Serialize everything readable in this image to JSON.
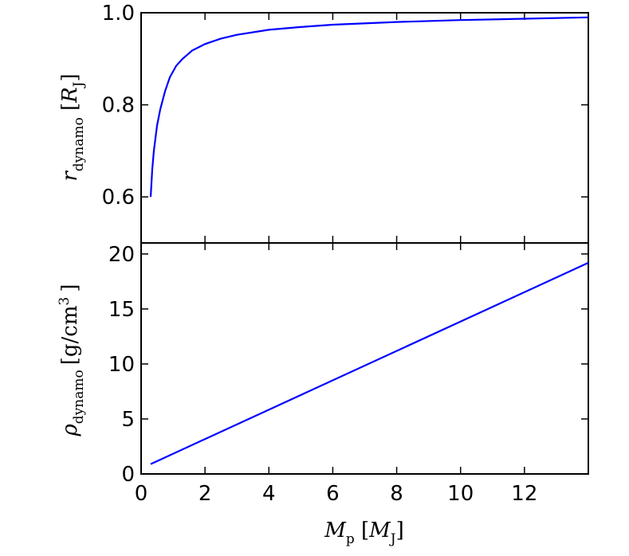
{
  "chart_data": [
    {
      "type": "line",
      "panel": "top",
      "ylabel": {
        "main": "r",
        "sub": "dynamo",
        "unit_main": "R",
        "unit_sub": "J"
      },
      "xlim": [
        0,
        14
      ],
      "ylim": [
        0.5,
        1.0
      ],
      "yticks": [
        0.6,
        0.8,
        1.0
      ],
      "ytick_labels": [
        "0.6",
        "0.8",
        "1.0"
      ],
      "series": [
        {
          "color": "#0000ff",
          "x": [
            0.3,
            0.35,
            0.4,
            0.5,
            0.6,
            0.75,
            0.9,
            1.1,
            1.3,
            1.6,
            2.0,
            2.5,
            3.0,
            4.0,
            5.0,
            6.0,
            8.0,
            10.0,
            12.0,
            14.0
          ],
          "y": [
            0.6,
            0.66,
            0.7,
            0.755,
            0.79,
            0.83,
            0.86,
            0.885,
            0.9,
            0.918,
            0.932,
            0.944,
            0.952,
            0.963,
            0.969,
            0.974,
            0.98,
            0.984,
            0.987,
            0.99
          ]
        }
      ]
    },
    {
      "type": "line",
      "panel": "bottom",
      "ylabel": {
        "main": "ρ",
        "sub": "dynamo",
        "unit": "[g/cm",
        "unit_sup": "3",
        "unit_close": "]"
      },
      "xlabel": {
        "main": "M",
        "sub": "p",
        "unit_main": "M",
        "unit_sub": "J"
      },
      "xlim": [
        0,
        14
      ],
      "ylim": [
        0,
        21
      ],
      "xticks": [
        0,
        2,
        4,
        6,
        8,
        10,
        12
      ],
      "xtick_labels": [
        "0",
        "2",
        "4",
        "6",
        "8",
        "10",
        "12"
      ],
      "yticks": [
        0,
        5,
        10,
        15,
        20
      ],
      "ytick_labels": [
        "0",
        "5",
        "10",
        "15",
        "20"
      ],
      "series": [
        {
          "color": "#0000ff",
          "x": [
            0.3,
            14.0
          ],
          "y": [
            0.9,
            19.2
          ]
        }
      ]
    }
  ]
}
